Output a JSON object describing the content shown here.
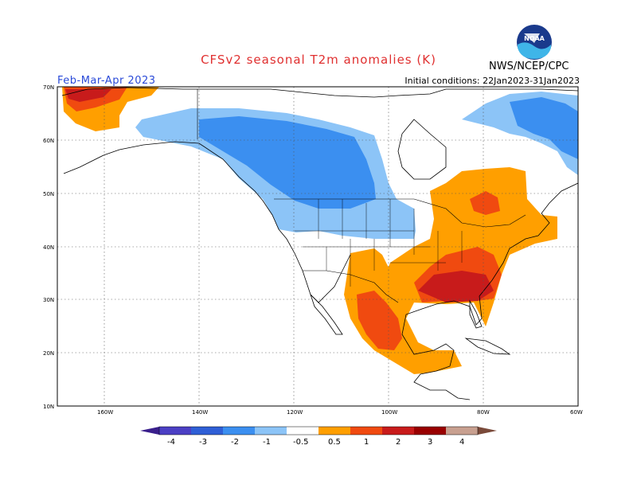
{
  "header": {
    "title": "CFSv2 seasonal T2m anomalies (K)",
    "period": "Feb-Mar-Apr 2023",
    "initial_conditions": "Initial conditions: 22Jan2023-31Jan2023",
    "agency": "NWS/NCEP/CPC",
    "logo_text": "NOAA"
  },
  "map": {
    "region": "North America",
    "lat_labels": [
      "70N",
      "60N",
      "50N",
      "40N",
      "30N",
      "20N",
      "10N"
    ],
    "lon_labels": [
      "160W",
      "140W",
      "120W",
      "100W",
      "80W",
      "60W"
    ]
  },
  "colorbar": {
    "labels": [
      "-4",
      "-3",
      "-2",
      "-1",
      "-0.5",
      "0.5",
      "1",
      "2",
      "3",
      "4"
    ],
    "colors": {
      "below_-4": "#3a1f8c",
      "-4_-3": "#4b3fc4",
      "-3_-2": "#2f5fd6",
      "-2_-1": "#3b8ff0",
      "-1_-0.5": "#8cc4f7",
      "neutral": "#ffffff",
      "0.5_1": "#ff9f00",
      "1_2": "#f04a10",
      "2_3": "#c81b1b",
      "3_4": "#990000",
      "4_5": "#c8a090",
      "above_5": "#7a4a3a"
    }
  }
}
